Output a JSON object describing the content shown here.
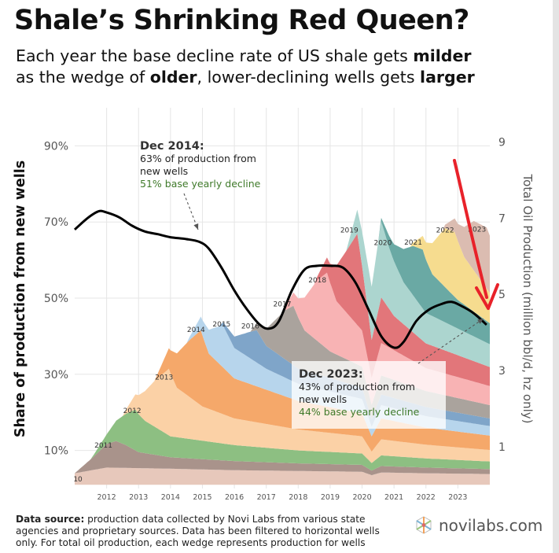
{
  "header": {
    "title": "Shale’s Shrinking Red Queen?",
    "subtitle_parts": [
      {
        "text": "Each year the base decline rate of US shale gets ",
        "bold": false
      },
      {
        "text": "milder",
        "bold": true
      },
      {
        "text": "as the wedge of ",
        "bold": false,
        "newline": true
      },
      {
        "text": "older",
        "bold": true
      },
      {
        "text": ", lower-declining wells gets ",
        "bold": false
      },
      {
        "text": "larger",
        "bold": true
      }
    ]
  },
  "footer": {
    "source_label": "Data source:",
    "source_text": " production data collected by Novi Labs from various state agencies and proprietary sources. Data has been filtered to horizontal wells only. For total oil production, each wedge represents production for wells"
  },
  "logo": {
    "text": "novilabs.com",
    "icon": "novilabs-hex-logo-icon"
  },
  "colors": {
    "share_line": "#000000",
    "highlight_arrow": "#e8222a",
    "annotation_green": "#3f7a2a"
  },
  "chart_data": {
    "type": "area",
    "stacked": true,
    "left_axis": {
      "label": "Share of production from new wells",
      "ticks": [
        10,
        30,
        50,
        70,
        90
      ],
      "tick_labels": [
        "10%",
        "30%",
        "50%",
        "70%",
        "90%"
      ],
      "range": [
        0,
        100
      ]
    },
    "right_axis": {
      "label": "Total Oil Production (million bbl/d, hz only)",
      "ticks": [
        1,
        3,
        5,
        7,
        9
      ],
      "tick_labels": [
        "1",
        "3",
        "5",
        "7",
        "9"
      ],
      "range": [
        -0.1,
        9.9
      ]
    },
    "x_axis": {
      "range": [
        2011.0,
        2024.0
      ],
      "ticks": [
        2012,
        2013,
        2014,
        2015,
        2016,
        2017,
        2018,
        2019,
        2020,
        2021,
        2022,
        2023
      ],
      "tick_labels": [
        "2012",
        "2013",
        "2014",
        "2015",
        "2016",
        "2017",
        "2018",
        "2019",
        "2020",
        "2021",
        "2022",
        "2023"
      ]
    },
    "grid": true,
    "cohorts": [
      {
        "name": "10",
        "label_x": 2011.1,
        "label_y": 0.15,
        "color": "#e7c8bb",
        "points": [
          [
            2011.0,
            0.3
          ],
          [
            2012.0,
            0.45
          ],
          [
            2014.0,
            0.42
          ],
          [
            2016.0,
            0.38
          ],
          [
            2018.0,
            0.36
          ],
          [
            2020.0,
            0.34
          ],
          [
            2020.3,
            0.25
          ],
          [
            2020.6,
            0.32
          ],
          [
            2022.0,
            0.3
          ],
          [
            2024.0,
            0.28
          ]
        ]
      },
      {
        "name": "2011",
        "label_x": 2011.9,
        "label_y": 0.6,
        "color": "#a9938b",
        "points": [
          [
            2011.0,
            0.0
          ],
          [
            2011.6,
            0.35
          ],
          [
            2012.0,
            0.62
          ],
          [
            2012.3,
            0.7
          ],
          [
            2012.6,
            0.6
          ],
          [
            2013.0,
            0.42
          ],
          [
            2014.0,
            0.3
          ],
          [
            2016.0,
            0.24
          ],
          [
            2018.0,
            0.2
          ],
          [
            2020.0,
            0.18
          ],
          [
            2020.3,
            0.12
          ],
          [
            2020.6,
            0.17
          ],
          [
            2022.0,
            0.15
          ],
          [
            2024.0,
            0.13
          ]
        ]
      },
      {
        "name": "2012",
        "label_x": 2012.8,
        "label_y": 1.0,
        "color": "#8dbf82",
        "points": [
          [
            2011.5,
            0.0
          ],
          [
            2012.0,
            0.25
          ],
          [
            2012.6,
            0.82
          ],
          [
            2012.9,
            1.07
          ],
          [
            2013.2,
            0.85
          ],
          [
            2014.0,
            0.55
          ],
          [
            2016.0,
            0.42
          ],
          [
            2018.0,
            0.34
          ],
          [
            2020.0,
            0.3
          ],
          [
            2020.3,
            0.2
          ],
          [
            2020.6,
            0.28
          ],
          [
            2022.0,
            0.24
          ],
          [
            2024.0,
            0.2
          ]
        ]
      },
      {
        "name": "2013",
        "label_x": 2013.8,
        "label_y": 1.45,
        "color": "#fbd1a6",
        "points": [
          [
            2012.5,
            0.0
          ],
          [
            2013.0,
            0.5
          ],
          [
            2013.5,
            1.2
          ],
          [
            2013.95,
            1.75
          ],
          [
            2014.2,
            1.3
          ],
          [
            2015.0,
            0.9
          ],
          [
            2016.0,
            0.7
          ],
          [
            2018.0,
            0.55
          ],
          [
            2020.0,
            0.45
          ],
          [
            2020.3,
            0.3
          ],
          [
            2020.6,
            0.42
          ],
          [
            2022.0,
            0.36
          ],
          [
            2024.0,
            0.3
          ]
        ]
      },
      {
        "name": "2014",
        "label_x": 2014.8,
        "label_y": 1.9,
        "color": "#f5a86a",
        "points": [
          [
            2013.5,
            0.0
          ],
          [
            2014.0,
            0.6
          ],
          [
            2014.6,
            1.5
          ],
          [
            2014.95,
            1.97
          ],
          [
            2015.2,
            1.45
          ],
          [
            2016.0,
            1.05
          ],
          [
            2018.0,
            0.75
          ],
          [
            2020.0,
            0.6
          ],
          [
            2020.3,
            0.4
          ],
          [
            2020.6,
            0.55
          ],
          [
            2022.0,
            0.45
          ],
          [
            2024.0,
            0.38
          ]
        ]
      },
      {
        "name": "2015",
        "label_x": 2015.6,
        "label_y": 1.1,
        "color": "#b7d5ec",
        "points": [
          [
            2014.5,
            0.0
          ],
          [
            2015.0,
            0.4
          ],
          [
            2015.4,
            0.85
          ],
          [
            2015.65,
            1.1
          ],
          [
            2016.0,
            0.8
          ],
          [
            2017.0,
            0.55
          ],
          [
            2018.0,
            0.45
          ],
          [
            2020.0,
            0.38
          ],
          [
            2020.3,
            0.25
          ],
          [
            2020.6,
            0.35
          ],
          [
            2022.0,
            0.3
          ],
          [
            2024.0,
            0.25
          ]
        ]
      },
      {
        "name": "2016",
        "label_x": 2016.5,
        "label_y": 0.85,
        "color": "#7fa5c9",
        "points": [
          [
            2015.5,
            0.0
          ],
          [
            2016.0,
            0.3
          ],
          [
            2016.5,
            0.7
          ],
          [
            2016.7,
            0.85
          ],
          [
            2017.0,
            0.6
          ],
          [
            2018.0,
            0.4
          ],
          [
            2020.0,
            0.3
          ],
          [
            2020.3,
            0.2
          ],
          [
            2020.6,
            0.28
          ],
          [
            2022.0,
            0.24
          ],
          [
            2024.0,
            0.2
          ]
        ]
      },
      {
        "name": "2017",
        "label_x": 2017.5,
        "label_y": 1.4,
        "color": "#aaa39d",
        "points": [
          [
            2016.5,
            0.0
          ],
          [
            2017.0,
            0.45
          ],
          [
            2017.6,
            1.3
          ],
          [
            2017.85,
            1.56
          ],
          [
            2018.2,
            1.05
          ],
          [
            2019.0,
            0.7
          ],
          [
            2020.0,
            0.55
          ],
          [
            2020.3,
            0.38
          ],
          [
            2020.6,
            0.5
          ],
          [
            2022.0,
            0.42
          ],
          [
            2024.0,
            0.35
          ]
        ]
      },
      {
        "name": "2018",
        "label_x": 2018.6,
        "label_y": 1.6,
        "color": "#f8b3b4",
        "points": [
          [
            2017.5,
            0.0
          ],
          [
            2018.0,
            0.5
          ],
          [
            2018.6,
            1.6
          ],
          [
            2018.9,
            2.0
          ],
          [
            2019.2,
            1.4
          ],
          [
            2020.0,
            0.95
          ],
          [
            2020.3,
            0.7
          ],
          [
            2020.6,
            0.85
          ],
          [
            2022.0,
            0.6
          ],
          [
            2024.0,
            0.5
          ]
        ]
      },
      {
        "name": "2019",
        "label_x": 2019.6,
        "label_y": 2.25,
        "color": "#e2767a",
        "points": [
          [
            2018.5,
            0.0
          ],
          [
            2019.0,
            0.5
          ],
          [
            2019.5,
            1.6
          ],
          [
            2019.85,
            2.4
          ],
          [
            2020.0,
            1.7
          ],
          [
            2020.3,
            1.0
          ],
          [
            2020.6,
            1.2
          ],
          [
            2021.0,
            0.9
          ],
          [
            2022.0,
            0.65
          ],
          [
            2024.0,
            0.5
          ]
        ]
      },
      {
        "name": "2020",
        "label_x": 2020.65,
        "label_y": 1.5,
        "color": "#acd5cf",
        "points": [
          [
            2019.5,
            0.0
          ],
          [
            2020.0,
            0.9
          ],
          [
            2020.3,
            1.4
          ],
          [
            2020.6,
            2.0
          ],
          [
            2020.85,
            1.6
          ],
          [
            2021.3,
            1.1
          ],
          [
            2022.0,
            0.8
          ],
          [
            2024.0,
            0.6
          ]
        ]
      },
      {
        "name": "2021",
        "label_x": 2021.6,
        "label_y": 1.4,
        "color": "#6aa9a4",
        "points": [
          [
            2020.5,
            0.0
          ],
          [
            2021.0,
            0.45
          ],
          [
            2021.6,
            1.3
          ],
          [
            2021.9,
            1.55
          ],
          [
            2022.2,
            1.1
          ],
          [
            2023.0,
            0.75
          ],
          [
            2024.0,
            0.55
          ]
        ]
      },
      {
        "name": "2022",
        "label_x": 2022.6,
        "label_y": 1.5,
        "color": "#f6dc8f",
        "points": [
          [
            2021.5,
            0.0
          ],
          [
            2022.0,
            0.45
          ],
          [
            2022.6,
            1.55
          ],
          [
            2022.9,
            1.7
          ],
          [
            2023.2,
            1.25
          ],
          [
            2024.0,
            0.8
          ]
        ]
      },
      {
        "name": "2023",
        "label_x": 2023.6,
        "label_y": 1.2,
        "color": "#dbbcb1",
        "points": [
          [
            2022.5,
            0.0
          ],
          [
            2023.0,
            0.45
          ],
          [
            2023.5,
            1.3
          ],
          [
            2023.9,
            1.6
          ],
          [
            2024.0,
            1.5
          ]
        ]
      }
    ],
    "share_series": {
      "name": "Share of production from new wells",
      "points": [
        [
          2011.0,
          68.0
        ],
        [
          2011.4,
          71.0
        ],
        [
          2011.75,
          72.8
        ],
        [
          2012.0,
          72.5
        ],
        [
          2012.4,
          71.2
        ],
        [
          2012.8,
          69.0
        ],
        [
          2013.2,
          67.5
        ],
        [
          2013.6,
          66.8
        ],
        [
          2014.0,
          66.0
        ],
        [
          2014.5,
          65.5
        ],
        [
          2014.9,
          64.8
        ],
        [
          2015.2,
          63.0
        ],
        [
          2015.6,
          58.0
        ],
        [
          2016.0,
          52.0
        ],
        [
          2016.4,
          47.0
        ],
        [
          2016.8,
          43.0
        ],
        [
          2017.1,
          42.0
        ],
        [
          2017.4,
          44.0
        ],
        [
          2017.8,
          52.0
        ],
        [
          2018.2,
          57.5
        ],
        [
          2018.6,
          58.5
        ],
        [
          2019.0,
          58.5
        ],
        [
          2019.4,
          58.0
        ],
        [
          2019.8,
          54.0
        ],
        [
          2020.2,
          47.0
        ],
        [
          2020.6,
          40.0
        ],
        [
          2021.0,
          37.0
        ],
        [
          2021.3,
          38.5
        ],
        [
          2021.7,
          44.0
        ],
        [
          2022.1,
          47.0
        ],
        [
          2022.5,
          48.5
        ],
        [
          2022.8,
          49.0
        ],
        [
          2023.1,
          48.0
        ],
        [
          2023.5,
          46.0
        ],
        [
          2023.9,
          43.0
        ]
      ]
    },
    "annotations": [
      {
        "title": "Dec 2014:",
        "lines": [
          "63% of production from",
          "new wells"
        ],
        "green": "51% base yearly decline"
      },
      {
        "title": "Dec 2023:",
        "lines": [
          "43% of production from",
          "new wells"
        ],
        "green": "44% base yearly decline"
      }
    ]
  }
}
